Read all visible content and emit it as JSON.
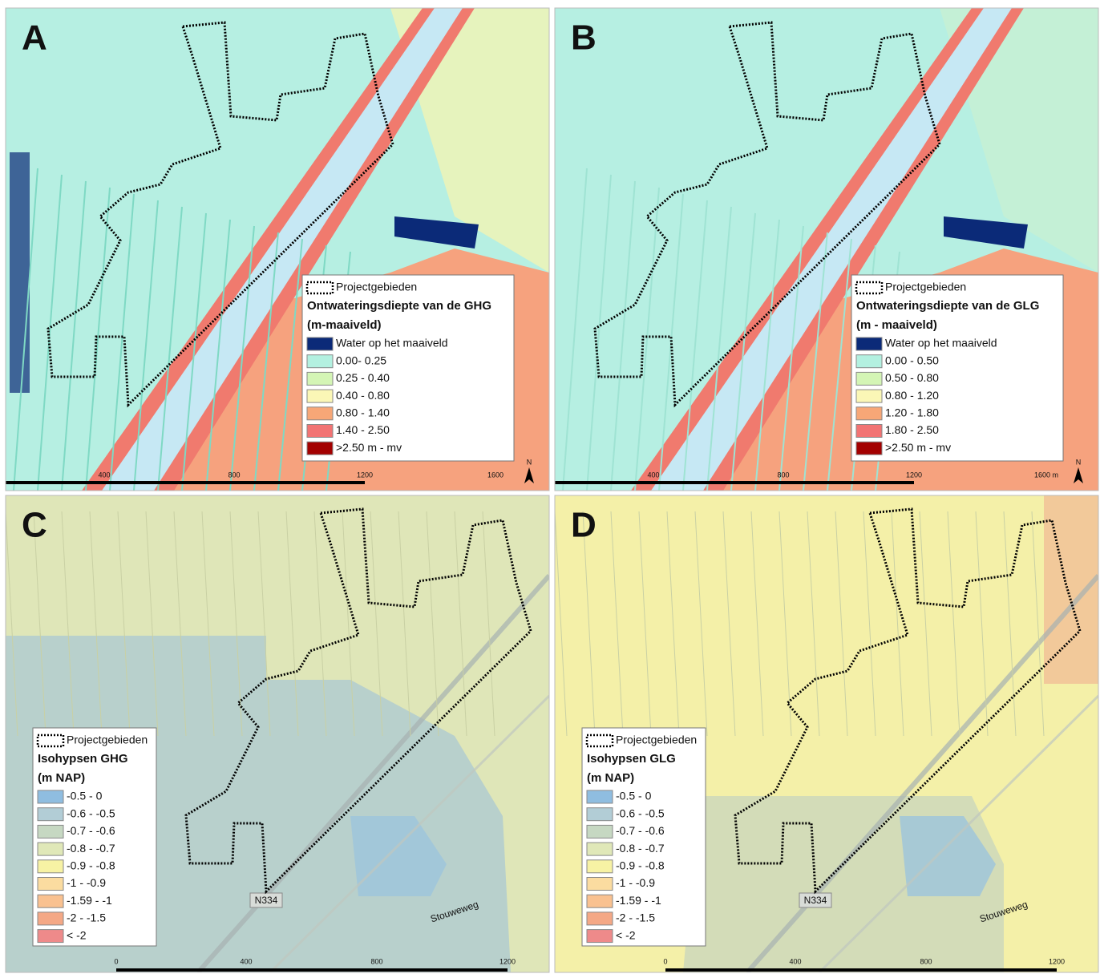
{
  "panels": [
    {
      "letter": "A",
      "legend": {
        "outline_label": "Projectgebieden",
        "title": "Ontwateringsdiepte van de GHG",
        "unit": "(m-maaiveld)",
        "items": [
          {
            "label": "Water op het maaiveld",
            "color": "#0b2a78"
          },
          {
            "label": "0.00- 0.25",
            "color": "#b3f0e0"
          },
          {
            "label": "0.25 - 0.40",
            "color": "#d4f5b5"
          },
          {
            "label": "0.40 - 0.80",
            "color": "#fbf7b6"
          },
          {
            "label": "0.80 - 1.40",
            "color": "#f7a777"
          },
          {
            "label": "1.40 - 2.50",
            "color": "#f27373"
          },
          {
            "label": ">2.50 m - mv",
            "color": "#a30000"
          }
        ]
      },
      "scale": [
        "400",
        "800",
        "1200",
        "1600"
      ],
      "north": "N"
    },
    {
      "letter": "B",
      "legend": {
        "outline_label": "Projectgebieden",
        "title": "Ontwateringsdiepte van de GLG",
        "unit": "(m - maaiveld)",
        "items": [
          {
            "label": "Water op het maaiveld",
            "color": "#0b2a78"
          },
          {
            "label": "0.00 - 0.50",
            "color": "#b3f0e0"
          },
          {
            "label": "0.50 - 0.80",
            "color": "#d4f5b5"
          },
          {
            "label": "0.80 - 1.20",
            "color": "#fbf7b6"
          },
          {
            "label": "1.20 - 1.80",
            "color": "#f7a777"
          },
          {
            "label": "1.80 - 2.50",
            "color": "#f27373"
          },
          {
            "label": ">2.50 m - mv",
            "color": "#a30000"
          }
        ]
      },
      "scale": [
        "400",
        "800",
        "1200",
        "1600 m"
      ],
      "north": "N"
    },
    {
      "letter": "C",
      "legend": {
        "outline_label": "Projectgebieden",
        "title": "Isohypsen GHG",
        "unit": "(m NAP)",
        "items": [
          {
            "label": "-0.5 - 0",
            "color": "#8fbde0"
          },
          {
            "label": "-0.6 - -0.5",
            "color": "#b2cdd6"
          },
          {
            "label": "-0.7 - -0.6",
            "color": "#c6d8c2"
          },
          {
            "label": "-0.8 - -0.7",
            "color": "#e0e8b8"
          },
          {
            "label": "-0.9 - -0.8",
            "color": "#f7f2a4"
          },
          {
            "label": "-1 - -0.9",
            "color": "#fbdca0"
          },
          {
            "label": "-1.59 - -1",
            "color": "#f9c190"
          },
          {
            "label": "-2 - -1.5",
            "color": "#f4a886"
          },
          {
            "label": "< -2",
            "color": "#ee8a8a"
          }
        ]
      },
      "scale": [
        "0",
        "400",
        "800",
        "1200"
      ],
      "map_labels": [
        "N334",
        "Stouweweg"
      ]
    },
    {
      "letter": "D",
      "legend": {
        "outline_label": "Projectgebieden",
        "title": "Isohypsen GLG",
        "unit": "(m NAP)",
        "items": [
          {
            "label": "-0.5 - 0",
            "color": "#8fbde0"
          },
          {
            "label": "-0.6 - -0.5",
            "color": "#b2cdd6"
          },
          {
            "label": "-0.7 - -0.6",
            "color": "#c6d8c2"
          },
          {
            "label": "-0.8 - -0.7",
            "color": "#e0e8b8"
          },
          {
            "label": "-0.9 - -0.8",
            "color": "#f7f2a4"
          },
          {
            "label": "-1 - -0.9",
            "color": "#fbdca0"
          },
          {
            "label": "-1.59 - -1",
            "color": "#f9c190"
          },
          {
            "label": "-2 - -1.5",
            "color": "#f4a886"
          },
          {
            "label": "< -2",
            "color": "#ee8a8a"
          }
        ]
      },
      "scale": [
        "0",
        "400",
        "800",
        "1200"
      ],
      "map_labels": [
        "N334",
        "Stouweweg"
      ]
    }
  ]
}
